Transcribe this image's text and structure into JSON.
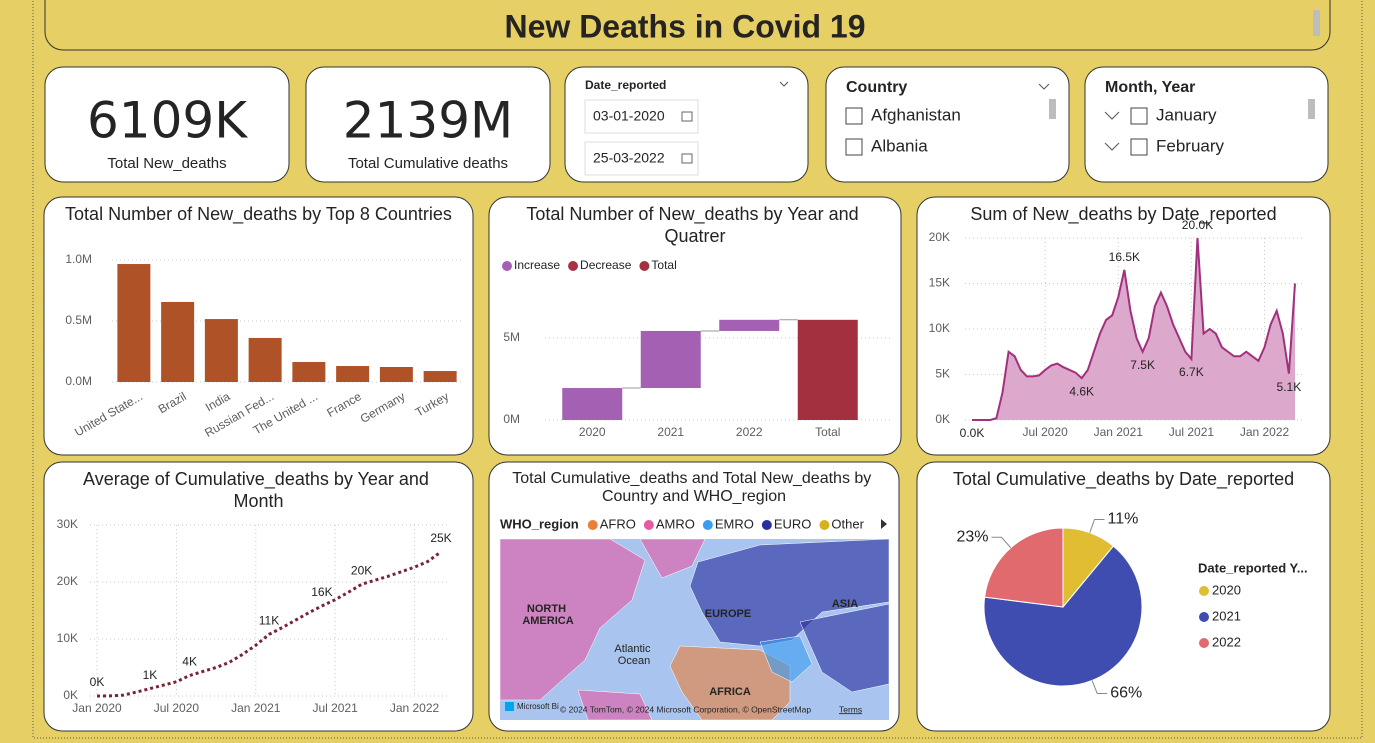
{
  "header": {
    "title": "New Deaths in Covid 19"
  },
  "cards": [
    {
      "value": "6109K",
      "label": "Total New_deaths"
    },
    {
      "value": "2139M",
      "label": "Total Cumulative deaths"
    }
  ],
  "date_slicer": {
    "title": "Date_reported",
    "start": "03-01-2020",
    "end": "25-03-2022"
  },
  "country_slicer": {
    "title": "Country",
    "items": [
      "Afghanistan",
      "Albania"
    ]
  },
  "month_slicer": {
    "title": "Month, Year",
    "items": [
      "January",
      "February"
    ]
  },
  "chart_data": [
    {
      "type": "bar",
      "title": "Total Number of New_deaths by Top 8 Countries",
      "categories": [
        "United State...",
        "Brazil",
        "India",
        "Russian Fed...",
        "The United ...",
        "France",
        "Germany",
        "Turkey"
      ],
      "values": [
        967000,
        656000,
        516000,
        361000,
        164000,
        131000,
        123000,
        90000
      ],
      "color": "#b05228",
      "ylim": [
        0,
        1000000
      ],
      "yticks": [
        {
          "value": 0,
          "label": "0.0M"
        },
        {
          "value": 500000,
          "label": "0.5M"
        },
        {
          "value": 1000000,
          "label": "1.0M"
        }
      ],
      "grid": true
    },
    {
      "type": "waterfall",
      "title": "Total Number of New_deaths by Year and Quatrer",
      "categories": [
        "2020",
        "2021",
        "2022",
        "Total"
      ],
      "series": [
        {
          "name": "Increase",
          "color": "#a461b4",
          "values": [
            1950000,
            3480000,
            679000,
            null
          ]
        },
        {
          "name": "Decrease",
          "color": "#a83244",
          "values": [
            null,
            null,
            null,
            null
          ]
        },
        {
          "name": "Total",
          "color": "#a2303e",
          "values": [
            null,
            null,
            null,
            6109000
          ]
        }
      ],
      "ylim": [
        0,
        7500000
      ],
      "yticks": [
        {
          "value": 0,
          "label": "0M"
        },
        {
          "value": 5000000,
          "label": "5M"
        }
      ],
      "grid": true
    },
    {
      "type": "area",
      "title": "Sum of New_deaths by Date_reported",
      "categories": [
        null,
        null,
        null,
        null,
        null,
        null,
        null,
        null,
        null,
        null,
        null,
        null,
        "Jul 2020",
        null,
        null,
        null,
        null,
        null,
        null,
        null,
        null,
        null,
        null,
        null,
        "Jan 2021",
        null,
        null,
        null,
        null,
        null,
        null,
        null,
        null,
        null,
        null,
        null,
        "Jul 2021",
        null,
        null,
        null,
        null,
        null,
        null,
        null,
        null,
        null,
        null,
        null,
        "Jan 2022",
        null,
        null,
        null,
        null,
        null
      ],
      "values": [
        0,
        0,
        0,
        0,
        200,
        3000,
        7500,
        7000,
        5500,
        4800,
        4800,
        4900,
        5500,
        6000,
        6200,
        5800,
        5500,
        5200,
        4600,
        5500,
        7500,
        9500,
        11000,
        11500,
        13500,
        16500,
        12000,
        9000,
        7500,
        9000,
        12500,
        14000,
        12500,
        10500,
        9000,
        7500,
        6700,
        20000,
        9500,
        10000,
        9500,
        8000,
        7500,
        7000,
        7000,
        7500,
        7000,
        6500,
        8000,
        10500,
        12000,
        9500,
        5100,
        15000
      ],
      "value_labels": [
        "0.0K",
        null,
        null,
        null,
        null,
        null,
        null,
        null,
        null,
        null,
        null,
        null,
        null,
        null,
        null,
        null,
        null,
        null,
        "4.6K",
        null,
        null,
        null,
        null,
        null,
        null,
        "16.5K",
        null,
        null,
        "7.5K",
        null,
        null,
        null,
        null,
        null,
        null,
        null,
        "6.7K",
        "20.0K",
        null,
        null,
        null,
        null,
        null,
        null,
        null,
        null,
        null,
        null,
        null,
        null,
        null,
        null,
        "5.1K",
        null
      ],
      "color": "#a2307d",
      "area_color": "#dca8cb",
      "ylim": [
        0,
        20000
      ],
      "yticks": [
        {
          "value": 0,
          "label": "0K"
        },
        {
          "value": 5000,
          "label": "5K"
        },
        {
          "value": 10000,
          "label": "10K"
        },
        {
          "value": 15000,
          "label": "15K"
        },
        {
          "value": 20000,
          "label": "20K"
        }
      ],
      "grid": true
    },
    {
      "type": "line",
      "title": "Average of Cumulative_deaths by Year and Month",
      "categories": [
        "Jan 2020",
        null,
        null,
        null,
        null,
        null,
        "Jul 2020",
        null,
        null,
        null,
        null,
        null,
        "Jan 2021",
        null,
        null,
        null,
        null,
        null,
        "Jul 2021",
        null,
        null,
        null,
        null,
        null,
        "Jan 2022",
        null,
        null
      ],
      "values": [
        0,
        20,
        150,
        700,
        1300,
        1900,
        2500,
        3600,
        4300,
        5000,
        5900,
        7300,
        8900,
        10800,
        12000,
        13300,
        14600,
        15800,
        16900,
        18200,
        19600,
        20300,
        21000,
        21800,
        22600,
        23600,
        25300
      ],
      "value_labels": [
        "0K",
        null,
        null,
        null,
        "1K",
        null,
        null,
        "4K",
        null,
        null,
        null,
        null,
        null,
        "11K",
        null,
        null,
        null,
        "16K",
        null,
        null,
        "20K",
        null,
        null,
        null,
        null,
        null,
        "25K"
      ],
      "color": "#7b2335",
      "line_style": "dotted",
      "ylim": [
        0,
        30000
      ],
      "yticks": [
        {
          "value": 0,
          "label": "0K"
        },
        {
          "value": 10000,
          "label": "10K"
        },
        {
          "value": 20000,
          "label": "20K"
        },
        {
          "value": 30000,
          "label": "30K"
        }
      ],
      "grid": true
    },
    {
      "type": "pie",
      "title": "Total Cumulative_deaths by Date_reported",
      "legend_title": "Date_reported Y...",
      "categories": [
        "2020",
        "2021",
        "2022"
      ],
      "values": [
        11,
        66,
        23
      ],
      "value_labels": [
        "11%",
        "66%",
        "23%"
      ],
      "colors": [
        "#e0bd32",
        "#3f4db0",
        "#e06a6e"
      ]
    }
  ],
  "map": {
    "title": "Total Cumulative_deaths and Total New_deaths by Country and WHO_region",
    "legend_title": "WHO_region",
    "legend": [
      {
        "name": "AFRO",
        "color": "#e8803c"
      },
      {
        "name": "AMRO",
        "color": "#e45aa6"
      },
      {
        "name": "EMRO",
        "color": "#3c9cf0"
      },
      {
        "name": "EURO",
        "color": "#2a2fa0"
      },
      {
        "name": "Other",
        "color": "#d4b21e"
      }
    ],
    "labels": [
      "NORTH AMERICA",
      "EUROPE",
      "ASIA",
      "Atlantic Ocean",
      "AFRICA"
    ],
    "logo": "Microsoft Bi",
    "attribution": "© 2024 TomTom, © 2024 Microsoft Corporation, © OpenStreetMap",
    "terms": "Terms"
  }
}
